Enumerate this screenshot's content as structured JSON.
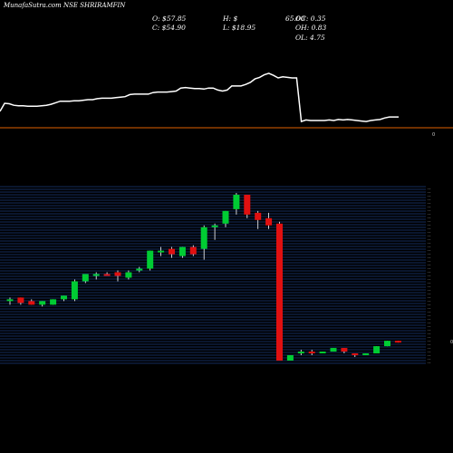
{
  "header": {
    "title": "MunafaSutra.com NSE SHRIRAMFIN",
    "o_label": "O: $57.85",
    "c_label": "C: $54.90",
    "h_label": "H: $",
    "l_label": "L: $18.95",
    "extra_label": "65.00",
    "oc_label": "OC: 0.35",
    "oh_label": "OH: 0.83",
    "ol_label": "OL: 4.75"
  },
  "volume_zero_label": "0",
  "right_marker": "0",
  "colors": {
    "background": "#000000",
    "bull": "#00cc33",
    "bear": "#e01010",
    "wick": "#ffffff",
    "grid": "#1c3c7a",
    "volume_line": "#ffffff",
    "volume_base": "#e06000"
  },
  "chart_data": [
    {
      "type": "line",
      "title": "",
      "series": [
        {
          "name": "",
          "values": [
            18,
            34,
            33,
            30,
            29,
            29,
            28,
            28,
            28,
            29,
            30,
            32,
            35,
            38,
            38,
            38,
            39,
            39,
            40,
            41,
            41,
            43,
            44,
            44,
            44,
            45,
            46,
            47,
            51,
            52,
            52,
            52,
            52,
            55,
            56,
            56,
            56,
            57,
            58,
            64,
            65,
            64,
            63,
            63,
            62,
            64,
            64,
            60,
            58,
            60,
            68,
            68,
            68,
            71,
            75,
            82,
            85,
            90,
            93,
            89,
            84,
            86,
            85,
            84,
            84,
            -2,
            1,
            0,
            0,
            0,
            0,
            1,
            0,
            2,
            1,
            2,
            1,
            0,
            -1,
            -2,
            0,
            1,
            2,
            5,
            7,
            7,
            7
          ]
        }
      ]
    },
    {
      "type": "candlestick",
      "title": "",
      "candles": [
        {
          "o": 30,
          "h": 32,
          "l": 28,
          "c": 31
        },
        {
          "o": 32,
          "h": 32,
          "l": 28,
          "c": 29
        },
        {
          "o": 30,
          "h": 31,
          "l": 28,
          "c": 28
        },
        {
          "o": 28,
          "h": 30,
          "l": 27,
          "c": 30
        },
        {
          "o": 28,
          "h": 31,
          "l": 28,
          "c": 31
        },
        {
          "o": 31,
          "h": 33,
          "l": 30,
          "c": 33
        },
        {
          "o": 31,
          "h": 42,
          "l": 30,
          "c": 41
        },
        {
          "o": 41,
          "h": 45,
          "l": 40,
          "c": 45
        },
        {
          "o": 44,
          "h": 46,
          "l": 42,
          "c": 45
        },
        {
          "o": 45,
          "h": 46,
          "l": 44,
          "c": 44
        },
        {
          "o": 46,
          "h": 47,
          "l": 41,
          "c": 44
        },
        {
          "o": 43,
          "h": 47,
          "l": 42,
          "c": 46
        },
        {
          "o": 47,
          "h": 49,
          "l": 46,
          "c": 48
        },
        {
          "o": 48,
          "h": 58,
          "l": 47,
          "c": 58
        },
        {
          "o": 57,
          "h": 60,
          "l": 55,
          "c": 58
        },
        {
          "o": 59,
          "h": 60,
          "l": 54,
          "c": 56
        },
        {
          "o": 55,
          "h": 60,
          "l": 54,
          "c": 60
        },
        {
          "o": 60,
          "h": 61,
          "l": 55,
          "c": 56
        },
        {
          "o": 59,
          "h": 72,
          "l": 53,
          "c": 71
        },
        {
          "o": 71,
          "h": 73,
          "l": 64,
          "c": 72
        },
        {
          "o": 73,
          "h": 80,
          "l": 71,
          "c": 80
        },
        {
          "o": 81,
          "h": 90,
          "l": 78,
          "c": 89
        },
        {
          "o": 89,
          "h": 89,
          "l": 76,
          "c": 78
        },
        {
          "o": 79,
          "h": 80,
          "l": 70,
          "c": 75
        },
        {
          "o": 76,
          "h": 79,
          "l": 70,
          "c": 72
        },
        {
          "o": 73,
          "h": 74,
          "l": -3,
          "c": -3
        },
        {
          "o": -3,
          "h": 0,
          "l": -3,
          "c": 0
        },
        {
          "o": 1,
          "h": 3,
          "l": 0,
          "c": 2
        },
        {
          "o": 2,
          "h": 3,
          "l": 0,
          "c": 1
        },
        {
          "o": 1,
          "h": 2,
          "l": 1,
          "c": 2
        },
        {
          "o": 2,
          "h": 4,
          "l": 2,
          "c": 4
        },
        {
          "o": 4,
          "h": 4,
          "l": 1,
          "c": 2
        },
        {
          "o": 1,
          "h": 1,
          "l": -1,
          "c": 0
        },
        {
          "o": 0,
          "h": 1,
          "l": 0,
          "c": 1
        },
        {
          "o": 1,
          "h": 5,
          "l": 1,
          "c": 5
        },
        {
          "o": 5,
          "h": 8,
          "l": 5,
          "c": 8
        },
        {
          "o": 8,
          "h": 8,
          "l": 7,
          "c": 7
        }
      ]
    }
  ]
}
